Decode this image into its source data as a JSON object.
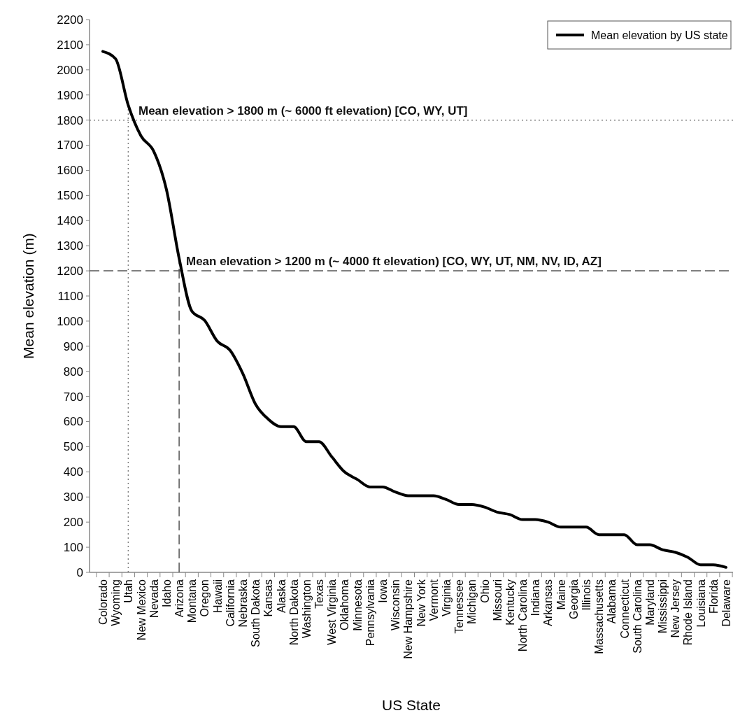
{
  "chart_data": {
    "type": "line",
    "xlabel": "US State",
    "ylabel": "Mean elevation (m)",
    "categories": [
      "Colorado",
      "Wyoming",
      "Utah",
      "New Mexico",
      "Nevada",
      "Idaho",
      "Arizona",
      "Montana",
      "Oregon",
      "Hawaii",
      "California",
      "Nebraska",
      "South Dakota",
      "Kansas",
      "Alaska",
      "North Dakota",
      "Washington",
      "Texas",
      "West Virginia",
      "Oklahoma",
      "Minnesota",
      "Pennsylvania",
      "Iowa",
      "Wisconsin",
      "New Hampshire",
      "New York",
      "Vermont",
      "Virginia",
      "Tennessee",
      "Michigan",
      "Ohio",
      "Missouri",
      "Kentucky",
      "North Carolina",
      "Indiana",
      "Arkansas",
      "Maine",
      "Georgia",
      "Illinois",
      "Massachusetts",
      "Alabama",
      "Connecticut",
      "South Carolina",
      "Maryland",
      "Mississippi",
      "New Jersey",
      "Rhode Island",
      "Louisiana",
      "Florida",
      "Delaware"
    ],
    "series": [
      {
        "name": "Mean elevation by US state",
        "color": "#000000",
        "values": [
          2073,
          2044,
          1859,
          1737,
          1676,
          1524,
          1250,
          1040,
          1003,
          920,
          884,
          792,
          670,
          610,
          580,
          580,
          520,
          520,
          460,
          400,
          370,
          340,
          340,
          320,
          305,
          305,
          305,
          290,
          270,
          270,
          260,
          240,
          230,
          210,
          210,
          200,
          180,
          180,
          180,
          150,
          150,
          150,
          110,
          110,
          90,
          80,
          60,
          30,
          30,
          20
        ]
      }
    ],
    "ylim": [
      0,
      2200
    ],
    "yticks": [
      0,
      100,
      200,
      300,
      400,
      500,
      600,
      700,
      800,
      900,
      1000,
      1100,
      1200,
      1300,
      1400,
      1500,
      1600,
      1700,
      1800,
      1900,
      2000,
      2100,
      2200
    ],
    "ref_lines": [
      {
        "axis": "y",
        "value": 1800,
        "label": "Mean elevation > 1800 m (~ 6000 ft elevation) [CO, WY, UT]",
        "line_style": "dotted",
        "color": "#808080"
      },
      {
        "axis": "y",
        "value": 1200,
        "label": "Mean elevation > 1200 m (~ 4000 ft elevation) [CO, WY, UT, NM, NV, ID, AZ]",
        "line_style": "dashed",
        "color": "#555555"
      },
      {
        "axis": "x",
        "value": "Utah",
        "line_style": "dotted",
        "color": "#808080"
      },
      {
        "axis": "x",
        "value": "Arizona",
        "line_style": "dashed",
        "color": "#555555"
      }
    ],
    "legend": "top right",
    "grid": false,
    "marker": "none",
    "line_style": "solid"
  }
}
